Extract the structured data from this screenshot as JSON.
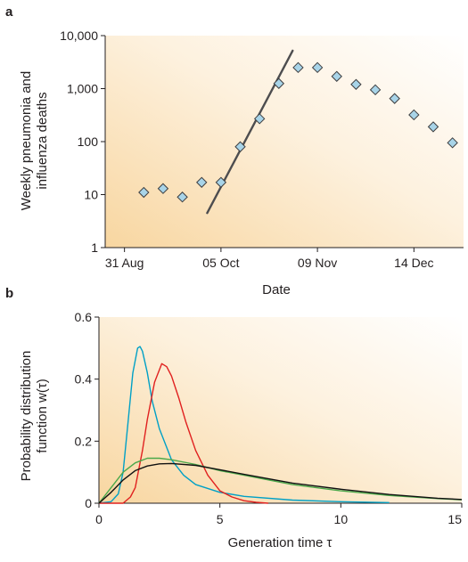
{
  "chart_data": [
    {
      "panel_label": "a",
      "type": "scatter",
      "y_scale": "log",
      "ylabel_lines": [
        "Weekly pneumonia and",
        "influenza deaths"
      ],
      "xlabel": "Date",
      "y_ticks": [
        1,
        10,
        100,
        1000,
        10000
      ],
      "y_tick_labels": [
        "1",
        "10",
        "100",
        "1,000",
        "10,000"
      ],
      "x_ticks": [
        "2018-08-31",
        "2018-10-05",
        "2018-11-09",
        "2018-12-14"
      ],
      "x_tick_labels": [
        "31 Aug",
        "05 Oct",
        "09 Nov",
        "14 Dec"
      ],
      "xlim": [
        "2018-08-24",
        "2019-01-01"
      ],
      "ylim": [
        1,
        10000
      ],
      "points": [
        {
          "x": "2018-09-07",
          "y": 11
        },
        {
          "x": "2018-09-14",
          "y": 13
        },
        {
          "x": "2018-09-21",
          "y": 9
        },
        {
          "x": "2018-09-28",
          "y": 17
        },
        {
          "x": "2018-10-05",
          "y": 17
        },
        {
          "x": "2018-10-12",
          "y": 80
        },
        {
          "x": "2018-10-19",
          "y": 270
        },
        {
          "x": "2018-10-26",
          "y": 1250
        },
        {
          "x": "2018-11-02",
          "y": 2500
        },
        {
          "x": "2018-11-09",
          "y": 2500
        },
        {
          "x": "2018-11-16",
          "y": 1700
        },
        {
          "x": "2018-11-23",
          "y": 1200
        },
        {
          "x": "2018-11-30",
          "y": 950
        },
        {
          "x": "2018-12-07",
          "y": 650
        },
        {
          "x": "2018-12-14",
          "y": 320
        },
        {
          "x": "2018-12-21",
          "y": 190
        },
        {
          "x": "2018-12-28",
          "y": 95
        }
      ],
      "fit_line": [
        {
          "x": "2018-09-30",
          "y": 4.5
        },
        {
          "x": "2018-10-31",
          "y": 5200
        }
      ],
      "marker_color": "#a8d4e8",
      "line_color": "#4d4d4f"
    },
    {
      "panel_label": "b",
      "type": "line",
      "ylabel_lines": [
        "Probability distribution",
        "function w(τ)"
      ],
      "xlabel": "Generation time τ",
      "xlim": [
        0,
        15
      ],
      "ylim": [
        0,
        0.6
      ],
      "x_ticks": [
        0,
        5,
        10,
        15
      ],
      "x_tick_labels": [
        "0",
        "5",
        "10",
        "15"
      ],
      "y_ticks": [
        0,
        0.2,
        0.4,
        0.6
      ],
      "y_tick_labels": [
        "0",
        "0.2",
        "0.4",
        "0.6"
      ],
      "series": [
        {
          "color": "#00a0c6",
          "x": [
            0,
            0.5,
            0.8,
            1.0,
            1.2,
            1.4,
            1.6,
            1.7,
            1.8,
            2.0,
            2.2,
            2.5,
            3.0,
            3.5,
            4.0,
            5.0,
            6.0,
            8.0,
            10.0,
            12.0
          ],
          "y": [
            0,
            0.005,
            0.03,
            0.1,
            0.26,
            0.42,
            0.5,
            0.505,
            0.49,
            0.42,
            0.33,
            0.24,
            0.14,
            0.09,
            0.06,
            0.035,
            0.022,
            0.01,
            0.005,
            0.002
          ]
        },
        {
          "color": "#e0201f",
          "x": [
            0,
            1.0,
            1.3,
            1.5,
            1.8,
            2.0,
            2.3,
            2.6,
            2.8,
            3.0,
            3.3,
            3.6,
            4.0,
            4.5,
            5.0,
            5.5,
            6.0,
            6.5,
            7.0
          ],
          "y": [
            0,
            0.0,
            0.02,
            0.05,
            0.17,
            0.27,
            0.39,
            0.45,
            0.44,
            0.41,
            0.34,
            0.26,
            0.17,
            0.09,
            0.04,
            0.02,
            0.008,
            0.003,
            0.0
          ]
        },
        {
          "color": "#4aa84a",
          "x": [
            0,
            0.5,
            1.0,
            1.5,
            2.0,
            2.5,
            3.0,
            4.0,
            5.0,
            6.0,
            8.0,
            10.0,
            12.0,
            14.0,
            15.0
          ],
          "y": [
            0,
            0.05,
            0.1,
            0.13,
            0.145,
            0.145,
            0.14,
            0.125,
            0.105,
            0.09,
            0.06,
            0.04,
            0.025,
            0.015,
            0.011
          ]
        },
        {
          "color": "#111111",
          "x": [
            0,
            0.5,
            1.0,
            1.5,
            2.0,
            2.5,
            3.0,
            4.0,
            5.0,
            6.0,
            8.0,
            10.0,
            12.0,
            14.0,
            15.0
          ],
          "y": [
            0,
            0.035,
            0.075,
            0.105,
            0.12,
            0.127,
            0.128,
            0.122,
            0.108,
            0.093,
            0.065,
            0.045,
            0.028,
            0.016,
            0.012
          ]
        }
      ]
    }
  ]
}
